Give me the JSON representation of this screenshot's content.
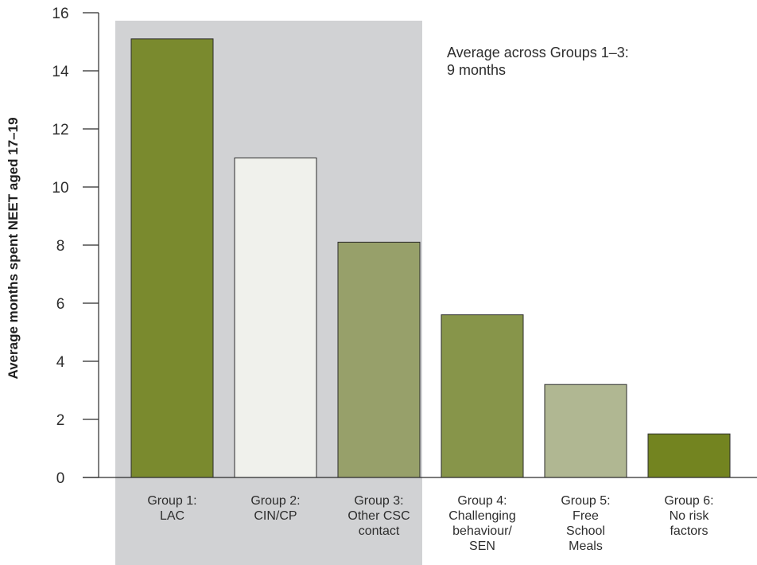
{
  "chart_data": {
    "type": "bar",
    "title": "",
    "xlabel": "",
    "ylabel": "Average months spent NEET aged 17–19",
    "ylim": [
      0,
      16
    ],
    "yticks": [
      0,
      2,
      4,
      6,
      8,
      10,
      12,
      14,
      16
    ],
    "grid": false,
    "legend": "none",
    "categories": [
      [
        "Group 1:",
        "LAC"
      ],
      [
        "Group 2:",
        "CIN/CP"
      ],
      [
        "Group 3:",
        "Other CSC",
        "contact"
      ],
      [
        "Group 4:",
        "Challenging",
        "behaviour/",
        "SEN"
      ],
      [
        "Group 5:",
        "Free",
        "School",
        "Meals"
      ],
      [
        "Group 6:",
        "No risk",
        "factors"
      ]
    ],
    "values": [
      15.1,
      11.0,
      8.1,
      5.6,
      3.2,
      1.5
    ],
    "colors": [
      "#7a8a2e",
      "#f0f1ec",
      "#97a06a",
      "#87954a",
      "#b0b792",
      "#738420"
    ],
    "highlight": {
      "categories": [
        0,
        1,
        2
      ],
      "color": "#d1d2d4",
      "annotation": [
        "Average across Groups 1–3:",
        "9 months"
      ]
    }
  }
}
